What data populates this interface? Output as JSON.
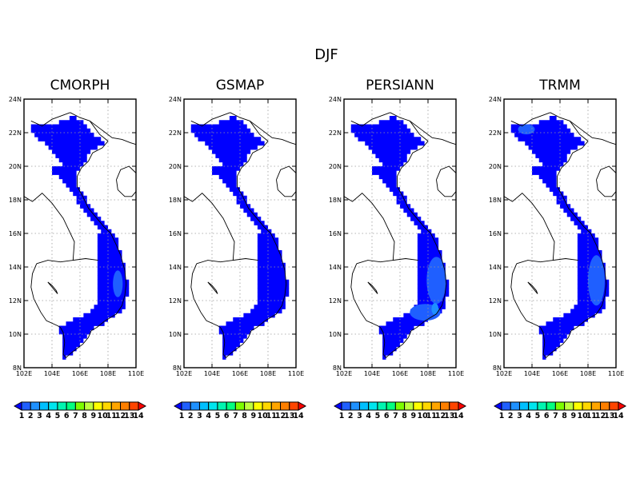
{
  "figure": {
    "title": "DJF",
    "x_ticks": [
      "102E",
      "104E",
      "106E",
      "108E",
      "110E"
    ],
    "y_ticks": [
      "8N",
      "10N",
      "12N",
      "14N",
      "16N",
      "18N",
      "20N",
      "22N",
      "24N"
    ],
    "colorbar": {
      "labels": [
        "1",
        "2",
        "3",
        "4",
        "5",
        "6",
        "7",
        "8",
        "9",
        "10",
        "11",
        "12",
        "13",
        "14"
      ],
      "colors": [
        "#0000ff",
        "#1f5fff",
        "#1e90ff",
        "#00bfff",
        "#00e5ee",
        "#00f5b0",
        "#00ff7f",
        "#7cfc00",
        "#c0ff3e",
        "#ffff00",
        "#ffd700",
        "#ffa500",
        "#ff7f00",
        "#ff4500",
        "#ff0000"
      ]
    }
  },
  "panels": [
    {
      "title": "CMORPH",
      "highlights": [
        {
          "lat": 13.0,
          "lon": 108.7,
          "rx": 0.35,
          "ry": 0.8,
          "color": "#1f5fff"
        }
      ]
    },
    {
      "title": "GSMAP",
      "highlights": []
    },
    {
      "title": "PERSIANN",
      "highlights": [
        {
          "lat": 13.2,
          "lon": 108.6,
          "rx": 0.7,
          "ry": 1.4,
          "color": "#1f5fff"
        },
        {
          "lat": 11.3,
          "lon": 107.8,
          "rx": 1.1,
          "ry": 0.5,
          "color": "#1f5fff"
        },
        {
          "lat": 11.5,
          "lon": 108.5,
          "rx": 0.25,
          "ry": 0.35,
          "color": "#1e90ff"
        }
      ]
    },
    {
      "title": "TRMM",
      "highlights": [
        {
          "lat": 13.2,
          "lon": 108.6,
          "rx": 0.6,
          "ry": 1.5,
          "color": "#1f5fff"
        },
        {
          "lat": 22.2,
          "lon": 103.6,
          "rx": 0.6,
          "ry": 0.3,
          "color": "#1f5fff"
        }
      ]
    }
  ]
}
